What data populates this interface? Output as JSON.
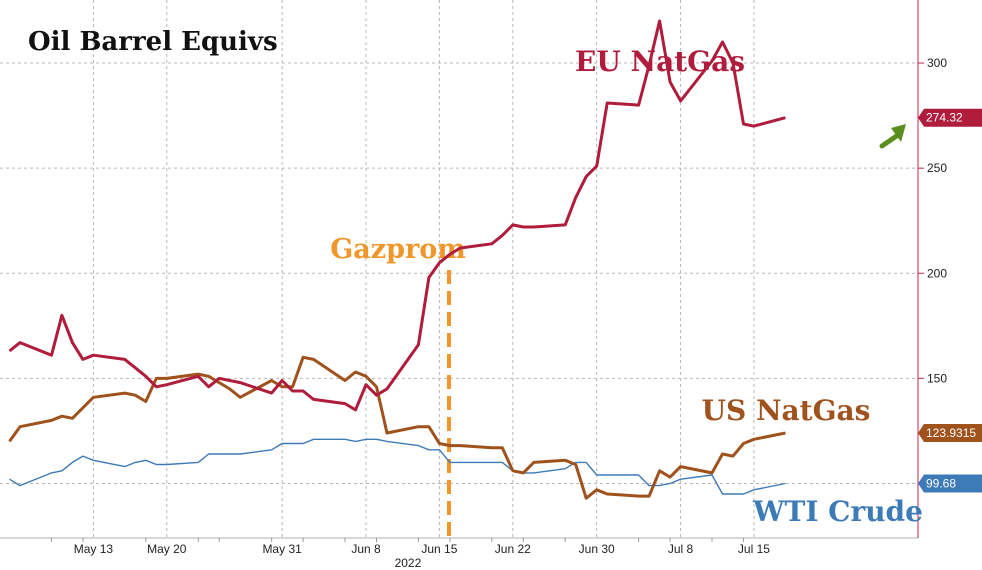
{
  "chart_data": {
    "type": "line",
    "title": "Oil Barrel Equivs",
    "x_tick_labels": [
      "May 13",
      "May 20",
      "May 31",
      "Jun 8",
      "Jun 15",
      "Jun 22",
      "Jun 30",
      "Jul 8",
      "Jul 15"
    ],
    "x_axis_year": "2022",
    "y_axis_side": "right",
    "ylim": [
      75,
      330
    ],
    "y_ticks": [
      100,
      150,
      200,
      250,
      300
    ],
    "y_tick_labels": [
      "",
      "150",
      "200",
      "250",
      "300"
    ],
    "grid": true,
    "event_annotation": {
      "label": "Gazprom",
      "date": "2022-06-14",
      "color": "#f0962a"
    },
    "trend_arrow": {
      "color": "#5a8f1e",
      "points_to": "EU NatGas"
    },
    "series": [
      {
        "name": "EU NatGas",
        "color": "#b01c3c",
        "last_value_label": "274.32",
        "dates": [
          "2022-05-05",
          "2022-05-06",
          "2022-05-09",
          "2022-05-10",
          "2022-05-11",
          "2022-05-12",
          "2022-05-13",
          "2022-05-16",
          "2022-05-17",
          "2022-05-18",
          "2022-05-19",
          "2022-05-20",
          "2022-05-23",
          "2022-05-24",
          "2022-05-25",
          "2022-05-26",
          "2022-05-27",
          "2022-05-30",
          "2022-05-31",
          "2022-06-01",
          "2022-06-02",
          "2022-06-03",
          "2022-06-06",
          "2022-06-07",
          "2022-06-08",
          "2022-06-09",
          "2022-06-10",
          "2022-06-13",
          "2022-06-14",
          "2022-06-15",
          "2022-06-16",
          "2022-06-17",
          "2022-06-20",
          "2022-06-21",
          "2022-06-22",
          "2022-06-23",
          "2022-06-24",
          "2022-06-27",
          "2022-06-28",
          "2022-06-29",
          "2022-06-30",
          "2022-07-01",
          "2022-07-04",
          "2022-07-05",
          "2022-07-06",
          "2022-07-07",
          "2022-07-08",
          "2022-07-11",
          "2022-07-12",
          "2022-07-13",
          "2022-07-14",
          "2022-07-15",
          "2022-07-18"
        ],
        "values": [
          163,
          167,
          161,
          180,
          167,
          159,
          161,
          159,
          155,
          151,
          146,
          147,
          151,
          146,
          150,
          149,
          148,
          143,
          149,
          144,
          144,
          140,
          138,
          135,
          147,
          142,
          145,
          166,
          198,
          205,
          209,
          212,
          214,
          218,
          223,
          222,
          222,
          223,
          236,
          246,
          251,
          281,
          280,
          299,
          320,
          291,
          282,
          301,
          310,
          300,
          271,
          270,
          274
        ]
      },
      {
        "name": "US NatGas",
        "color": "#a0521c",
        "last_value_label": "123.9315",
        "dates": [
          "2022-05-05",
          "2022-05-06",
          "2022-05-09",
          "2022-05-10",
          "2022-05-11",
          "2022-05-12",
          "2022-05-13",
          "2022-05-16",
          "2022-05-17",
          "2022-05-18",
          "2022-05-19",
          "2022-05-20",
          "2022-05-23",
          "2022-05-24",
          "2022-05-25",
          "2022-05-26",
          "2022-05-27",
          "2022-05-30",
          "2022-05-31",
          "2022-06-01",
          "2022-06-02",
          "2022-06-03",
          "2022-06-06",
          "2022-06-07",
          "2022-06-08",
          "2022-06-09",
          "2022-06-10",
          "2022-06-13",
          "2022-06-14",
          "2022-06-15",
          "2022-06-16",
          "2022-06-17",
          "2022-06-20",
          "2022-06-21",
          "2022-06-22",
          "2022-06-23",
          "2022-06-24",
          "2022-06-27",
          "2022-06-28",
          "2022-06-29",
          "2022-06-30",
          "2022-07-01",
          "2022-07-04",
          "2022-07-05",
          "2022-07-06",
          "2022-07-07",
          "2022-07-08",
          "2022-07-11",
          "2022-07-12",
          "2022-07-13",
          "2022-07-14",
          "2022-07-15",
          "2022-07-18"
        ],
        "values": [
          120,
          127,
          130,
          132,
          131,
          136,
          141,
          143,
          142,
          139,
          150,
          150,
          152,
          151,
          148,
          145,
          141,
          149,
          146,
          146,
          160,
          159,
          149,
          153,
          151,
          146,
          124,
          127,
          127,
          119,
          118,
          118,
          117,
          117,
          106,
          105,
          110,
          111,
          109,
          93,
          97,
          95,
          94,
          94,
          106,
          103,
          108,
          105,
          114,
          113,
          119,
          121,
          124
        ]
      },
      {
        "name": "WTI Crude",
        "color": "#3d7ab8",
        "last_value_label": "99.68",
        "dates": [
          "2022-05-05",
          "2022-05-06",
          "2022-05-09",
          "2022-05-10",
          "2022-05-11",
          "2022-05-12",
          "2022-05-13",
          "2022-05-16",
          "2022-05-17",
          "2022-05-18",
          "2022-05-19",
          "2022-05-20",
          "2022-05-23",
          "2022-05-24",
          "2022-05-25",
          "2022-05-26",
          "2022-05-27",
          "2022-05-30",
          "2022-05-31",
          "2022-06-01",
          "2022-06-02",
          "2022-06-03",
          "2022-06-06",
          "2022-06-07",
          "2022-06-08",
          "2022-06-09",
          "2022-06-10",
          "2022-06-13",
          "2022-06-14",
          "2022-06-15",
          "2022-06-16",
          "2022-06-17",
          "2022-06-20",
          "2022-06-21",
          "2022-06-22",
          "2022-06-23",
          "2022-06-24",
          "2022-06-27",
          "2022-06-28",
          "2022-06-29",
          "2022-06-30",
          "2022-07-01",
          "2022-07-04",
          "2022-07-05",
          "2022-07-06",
          "2022-07-07",
          "2022-07-08",
          "2022-07-11",
          "2022-07-12",
          "2022-07-13",
          "2022-07-14",
          "2022-07-15",
          "2022-07-18"
        ],
        "values": [
          102,
          99,
          105,
          106,
          110,
          113,
          111,
          108,
          110,
          111,
          109,
          109,
          110,
          114,
          114,
          114,
          114,
          116,
          119,
          119,
          119,
          121,
          121,
          120,
          121,
          121,
          120,
          118,
          116,
          116,
          110,
          110,
          110,
          110,
          106,
          105,
          105,
          107,
          110,
          110,
          104,
          104,
          104,
          99,
          99,
          100,
          102,
          104,
          95,
          95,
          95,
          97,
          100
        ]
      }
    ]
  }
}
